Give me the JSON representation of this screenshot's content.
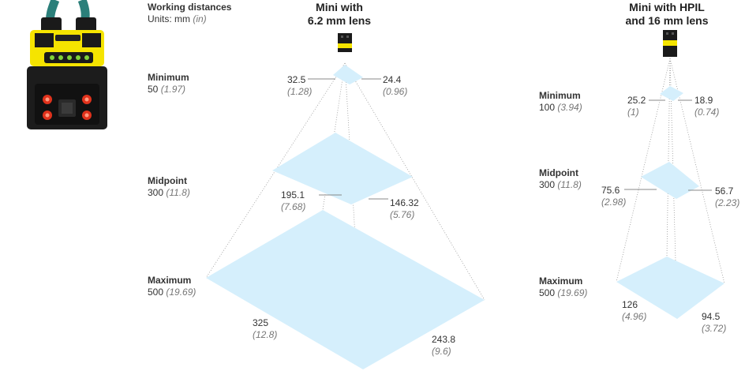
{
  "header": {
    "title": "Working distances",
    "units_prefix": "Units: mm ",
    "units_italic": "(in)"
  },
  "left_diagram": {
    "title_line1": "Mini with",
    "title_line2": "6.2 mm lens",
    "distances": [
      {
        "label": "Minimum",
        "mm": "50",
        "in": "(1.97)"
      },
      {
        "label": "Midpoint",
        "mm": "300",
        "in": "(11.8)"
      },
      {
        "label": "Maximum",
        "mm": "500",
        "in": "(19.69)"
      }
    ],
    "dims": {
      "min_w": {
        "mm": "32.5",
        "in": "(1.28)"
      },
      "min_h": {
        "mm": "24.4",
        "in": "(0.96)"
      },
      "mid_w": {
        "mm": "195.1",
        "in": "(7.68)"
      },
      "mid_h": {
        "mm": "146.32",
        "in": "(5.76)"
      },
      "max_w": {
        "mm": "325",
        "in": "(12.8)"
      },
      "max_h": {
        "mm": "243.8",
        "in": "(9.6)"
      }
    }
  },
  "right_diagram": {
    "title_line1": "Mini with HPIL",
    "title_line2": "and 16 mm lens",
    "distances": [
      {
        "label": "Minimum",
        "mm": "100",
        "in": "(3.94)"
      },
      {
        "label": "Midpoint",
        "mm": "300",
        "in": "(11.8)"
      },
      {
        "label": "Maximum",
        "mm": "500",
        "in": "(19.69)"
      }
    ],
    "dims": {
      "min_w": {
        "mm": "25.2",
        "in": "(1)"
      },
      "min_h": {
        "mm": "18.9",
        "in": "(0.74)"
      },
      "mid_w": {
        "mm": "75.6",
        "in": "(2.98)"
      },
      "mid_h": {
        "mm": "56.7",
        "in": "(2.23)"
      },
      "max_w": {
        "mm": "126",
        "in": "(4.96)"
      },
      "max_h": {
        "mm": "94.5",
        "in": "(3.72)"
      }
    }
  },
  "colors": {
    "field": "#d5effc",
    "camera_yellow": "#f5e400",
    "camera_body": "#1c1c1c",
    "cable_teal": "#2b7f7a",
    "led_red": "#e0321c"
  },
  "icons": [
    "camera-product-photo",
    "camera-icon"
  ]
}
